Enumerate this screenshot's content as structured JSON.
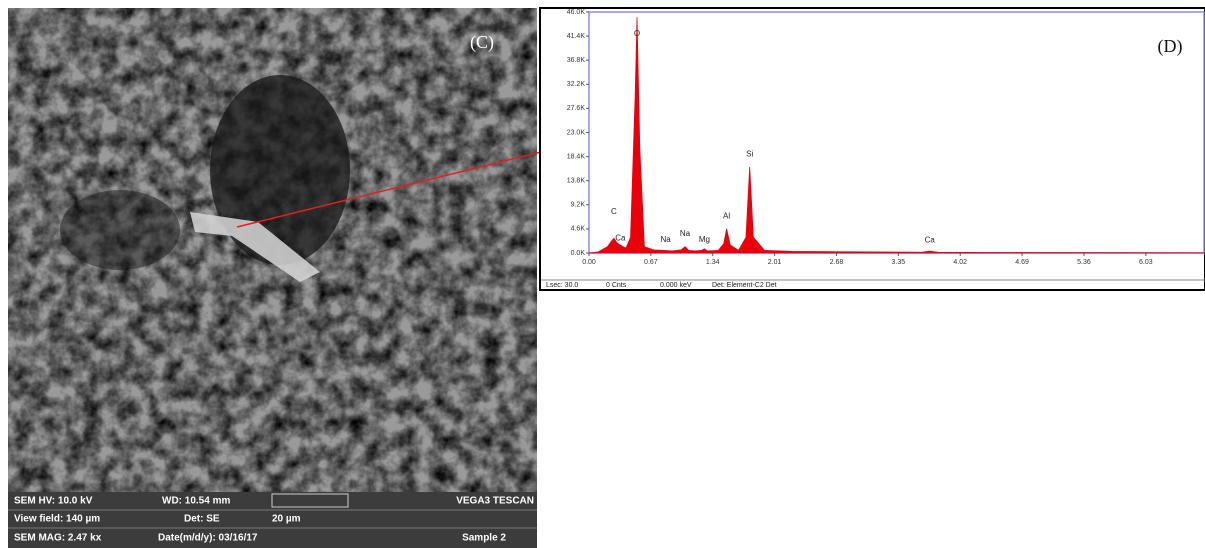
{
  "sem_image": {
    "panel_label": "(C)",
    "info": [
      [
        "SEM HV: 10.0 kV",
        "WD: 10.54 mm",
        "VEGA3 TESCAN"
      ],
      [
        "View field: 140 µm",
        "Det: SE",
        "20 µm"
      ],
      [
        "SEM MAG: 2.47 kx",
        "Date(m/d/y): 03/16/17",
        "Sample 2"
      ]
    ]
  },
  "chart_data": {
    "type": "area",
    "panel_label": "(D)",
    "color": "#e8000b",
    "x": [
      0.0,
      0.1,
      0.2,
      0.25,
      0.27,
      0.3,
      0.34,
      0.4,
      0.45,
      0.5,
      0.52,
      0.55,
      0.6,
      0.7,
      0.9,
      1.0,
      1.04,
      1.08,
      1.15,
      1.22,
      1.25,
      1.28,
      1.4,
      1.46,
      1.49,
      1.53,
      1.62,
      1.7,
      1.74,
      1.78,
      1.9,
      2.2,
      3.0,
      3.6,
      3.69,
      3.78,
      4.5,
      6.66
    ],
    "values": [
      0,
      200,
      1200,
      2400,
      2800,
      2000,
      1500,
      900,
      3000,
      30000,
      45000,
      20000,
      1200,
      600,
      400,
      600,
      1200,
      500,
      400,
      500,
      800,
      400,
      500,
      1800,
      4600,
      1500,
      500,
      3000,
      16400,
      3000,
      500,
      300,
      200,
      150,
      350,
      150,
      100,
      50
    ],
    "xlim": [
      0,
      6.66
    ],
    "xticks": [
      {
        "value": 0,
        "label": "0.00"
      },
      0.67,
      1.34,
      2.01,
      2.68,
      3.35,
      4.02,
      4.69,
      5.36,
      6.03
    ],
    "ylim": [
      0,
      46000
    ],
    "yticks": [
      {
        "value": 0,
        "label": "0.0K"
      },
      {
        "value": 4600,
        "label": "4.6K"
      },
      {
        "value": 9200,
        "label": "9.2K"
      },
      {
        "value": 13800,
        "label": "13.8K"
      },
      {
        "value": 18400,
        "label": "18.4K"
      },
      {
        "value": 23000,
        "label": "23.0K"
      },
      {
        "value": 27600,
        "label": "27.6K"
      },
      {
        "value": 32200,
        "label": "32.2K"
      },
      {
        "value": 36800,
        "label": "36.8K"
      },
      {
        "value": 41400,
        "label": "41.4K"
      },
      {
        "value": 46000,
        "label": "46.0K"
      }
    ],
    "annotations": [
      {
        "text": "C",
        "x": 0.27,
        "y": 7800
      },
      {
        "text": "Ca",
        "x": 0.34,
        "y": 2800
      },
      {
        "text": "O",
        "x": 0.52,
        "y": 41800
      },
      {
        "text": "Na",
        "x": 0.83,
        "y": 2500
      },
      {
        "text": "Na",
        "x": 1.04,
        "y": 3600
      },
      {
        "text": "Mg",
        "x": 1.25,
        "y": 2500
      },
      {
        "text": "Al",
        "x": 1.49,
        "y": 7000
      },
      {
        "text": "Si",
        "x": 1.74,
        "y": 18800
      },
      {
        "text": "Ca",
        "x": 3.69,
        "y": 2400
      }
    ],
    "status": [
      "Lsec: 30.0",
      "0 Cnts",
      "0.000 keV",
      "Det: Element-C2 Det"
    ]
  }
}
